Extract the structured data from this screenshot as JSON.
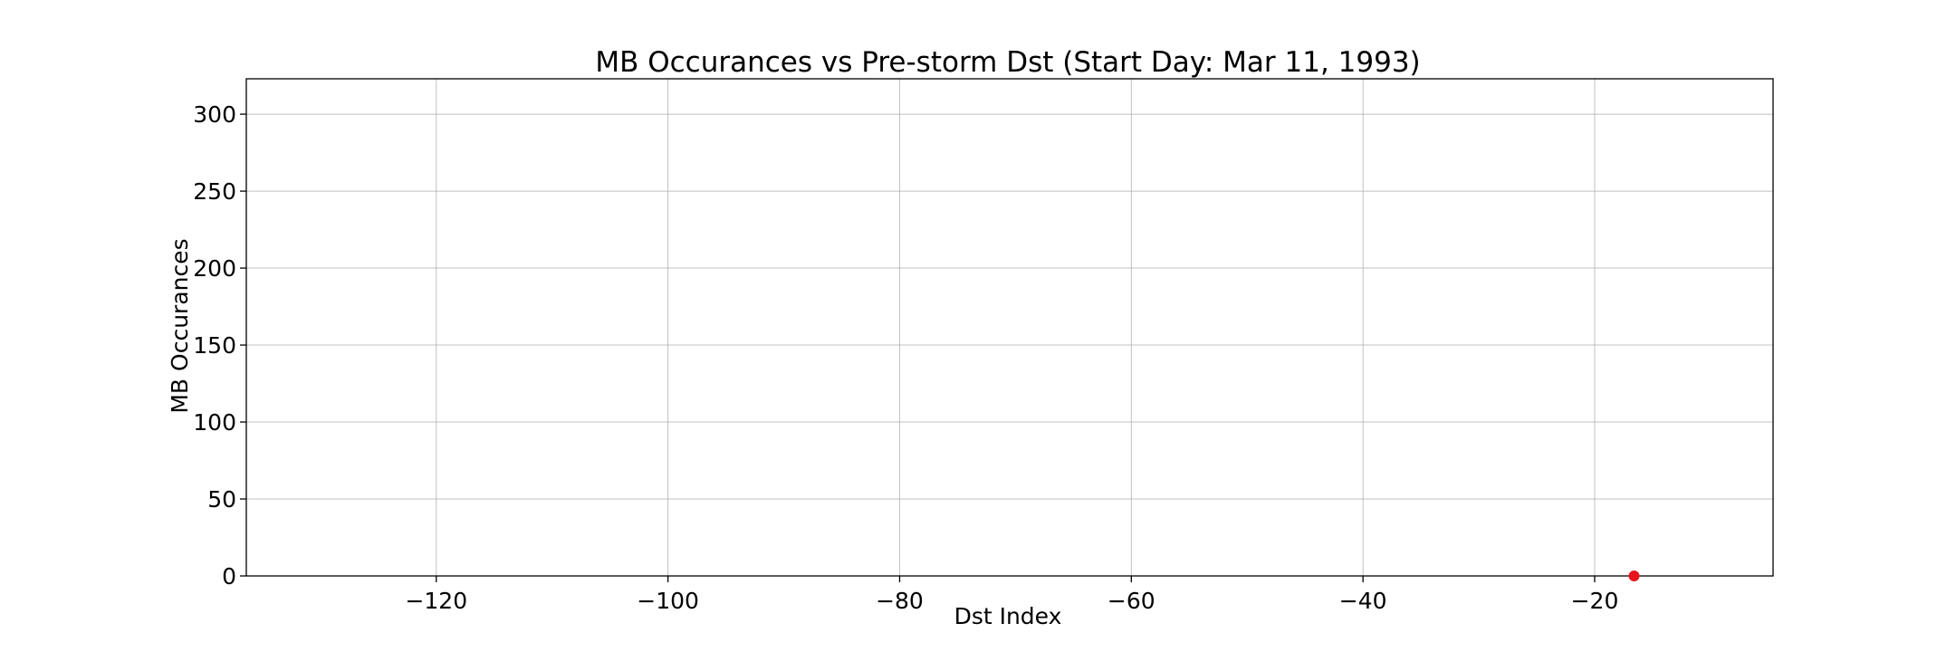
{
  "chart_data": {
    "type": "scatter",
    "title": "MB Occurances vs Pre-storm Dst (Start Day: Mar 11, 1993)",
    "xlabel": "Dst Index",
    "ylabel": "MB Occurances",
    "xlim": [
      -136.4,
      -4.6
    ],
    "ylim": [
      0,
      323
    ],
    "x_ticks": [
      -120,
      -100,
      -80,
      -60,
      -40,
      -20
    ],
    "x_tick_labels": [
      "−120",
      "−100",
      "−80",
      "−60",
      "−40",
      "−20"
    ],
    "y_ticks": [
      0,
      50,
      100,
      150,
      200,
      250,
      300
    ],
    "y_tick_labels": [
      "0",
      "50",
      "100",
      "150",
      "200",
      "250",
      "300"
    ],
    "grid": true,
    "series": [
      {
        "color": "#e8141c",
        "points": [
          {
            "x": -16.6,
            "y": 0
          }
        ]
      }
    ]
  }
}
